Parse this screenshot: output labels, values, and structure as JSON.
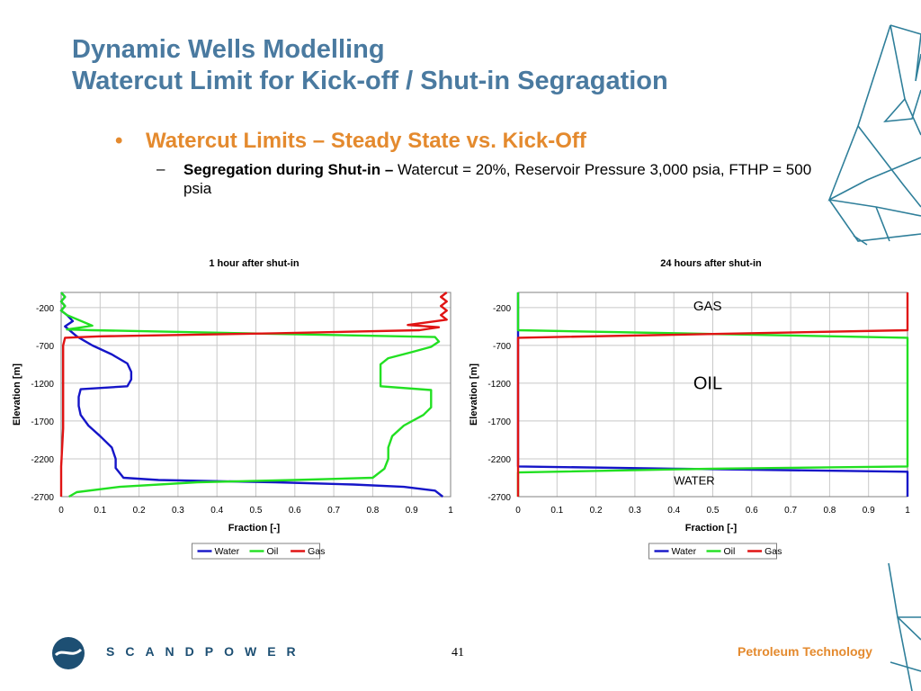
{
  "header": {
    "title_line1": "Dynamic Wells Modelling",
    "title_line2": "Watercut Limit for Kick-off / Shut-in Segragation"
  },
  "bullet": {
    "symbol": "•",
    "text": "Watercut Limits – Steady State vs. Kick-Off"
  },
  "sub_bullet": {
    "dash": "–",
    "bold": "Segregation during Shut-in –",
    "text": " Watercut = 20%, Reservoir Pressure 3,000 psia, FTHP = 500 psia"
  },
  "footer": {
    "page_number": "41",
    "brand": "SCANDPOWER",
    "tagline": "Petroleum Technology"
  },
  "colors": {
    "title": "#4a7aa0",
    "accent": "#e48a2e",
    "water": "#1515c8",
    "oil": "#22e022",
    "gas": "#e01414",
    "brand": "#1d4f73"
  },
  "chart_data": [
    {
      "type": "line",
      "title": "1 hour after shut-in",
      "xlabel": "Fraction [-]",
      "ylabel": "Elevation [m]",
      "xlim": [
        0,
        1
      ],
      "ylim": [
        -2700,
        0
      ],
      "x_ticks": [
        "0",
        "0.1",
        "0.2",
        "0.3",
        "0.4",
        "0.5",
        "0.6",
        "0.7",
        "0.8",
        "0.9",
        "1"
      ],
      "y_ticks": [
        "-200",
        "-700",
        "-1200",
        "-1700",
        "-2200",
        "-2700"
      ],
      "y_tick_values": [
        -200,
        -700,
        -1200,
        -1700,
        -2200,
        -2700
      ],
      "legend": "bottom",
      "grid": true,
      "series": [
        {
          "name": "Water",
          "color": "#1515c8",
          "points": [
            [
              0.0,
              0
            ],
            [
              0.01,
              -60
            ],
            [
              0.0,
              -120
            ],
            [
              0.01,
              -180
            ],
            [
              0.0,
              -240
            ],
            [
              0.015,
              -300
            ],
            [
              0.03,
              -380
            ],
            [
              0.01,
              -450
            ],
            [
              0.04,
              -580
            ],
            [
              0.08,
              -700
            ],
            [
              0.13,
              -820
            ],
            [
              0.17,
              -940
            ],
            [
              0.18,
              -1050
            ],
            [
              0.18,
              -1150
            ],
            [
              0.17,
              -1240
            ],
            [
              0.05,
              -1280
            ],
            [
              0.045,
              -1380
            ],
            [
              0.045,
              -1500
            ],
            [
              0.05,
              -1620
            ],
            [
              0.07,
              -1760
            ],
            [
              0.1,
              -1900
            ],
            [
              0.13,
              -2050
            ],
            [
              0.14,
              -2200
            ],
            [
              0.14,
              -2320
            ],
            [
              0.16,
              -2450
            ],
            [
              0.25,
              -2480
            ],
            [
              0.55,
              -2510
            ],
            [
              0.75,
              -2540
            ],
            [
              0.88,
              -2570
            ],
            [
              0.96,
              -2620
            ],
            [
              0.98,
              -2700
            ]
          ]
        },
        {
          "name": "Oil",
          "color": "#22e022",
          "points": [
            [
              0.0,
              0
            ],
            [
              0.01,
              -60
            ],
            [
              0.0,
              -120
            ],
            [
              0.01,
              -180
            ],
            [
              0.0,
              -240
            ],
            [
              0.015,
              -300
            ],
            [
              0.08,
              -440
            ],
            [
              0.015,
              -490
            ],
            [
              0.08,
              -500
            ],
            [
              0.96,
              -590
            ],
            [
              0.97,
              -650
            ],
            [
              0.95,
              -720
            ],
            [
              0.9,
              -790
            ],
            [
              0.84,
              -870
            ],
            [
              0.82,
              -950
            ],
            [
              0.82,
              -1100
            ],
            [
              0.82,
              -1240
            ],
            [
              0.95,
              -1290
            ],
            [
              0.95,
              -1400
            ],
            [
              0.95,
              -1520
            ],
            [
              0.93,
              -1620
            ],
            [
              0.88,
              -1760
            ],
            [
              0.85,
              -1900
            ],
            [
              0.84,
              -2050
            ],
            [
              0.84,
              -2200
            ],
            [
              0.83,
              -2330
            ],
            [
              0.8,
              -2450
            ],
            [
              0.6,
              -2480
            ],
            [
              0.35,
              -2510
            ],
            [
              0.15,
              -2570
            ],
            [
              0.04,
              -2640
            ],
            [
              0.02,
              -2700
            ]
          ]
        },
        {
          "name": "Gas",
          "color": "#e01414",
          "points": [
            [
              0.99,
              0
            ],
            [
              0.975,
              -60
            ],
            [
              0.99,
              -120
            ],
            [
              0.975,
              -180
            ],
            [
              0.99,
              -240
            ],
            [
              0.975,
              -300
            ],
            [
              0.99,
              -360
            ],
            [
              0.89,
              -430
            ],
            [
              0.97,
              -460
            ],
            [
              0.92,
              -500
            ],
            [
              0.55,
              -540
            ],
            [
              0.1,
              -580
            ],
            [
              0.01,
              -600
            ],
            [
              0.005,
              -700
            ],
            [
              0.005,
              -1200
            ],
            [
              0.005,
              -1800
            ],
            [
              0.0,
              -2300
            ],
            [
              0.0,
              -2700
            ]
          ]
        }
      ]
    },
    {
      "type": "line",
      "title": "24 hours after shut-in",
      "xlabel": "Fraction [-]",
      "ylabel": "Elevation [m]",
      "xlim": [
        0,
        1
      ],
      "ylim": [
        -2700,
        0
      ],
      "x_ticks": [
        "0",
        "0.1",
        "0.2",
        "0.3",
        "0.4",
        "0.5",
        "0.6",
        "0.7",
        "0.8",
        "0.9",
        "1"
      ],
      "y_ticks": [
        "-200",
        "-700",
        "-1200",
        "-1700",
        "-2200",
        "-2700"
      ],
      "y_tick_values": [
        -200,
        -700,
        -1200,
        -1700,
        -2200,
        -2700
      ],
      "legend": "bottom",
      "grid": true,
      "annotations": [
        {
          "text": "GAS",
          "x": 0.45,
          "y": -240
        },
        {
          "text": "OIL",
          "x": 0.45,
          "y": -1280
        },
        {
          "text": "WATER",
          "x": 0.4,
          "y": -2540
        }
      ],
      "series": [
        {
          "name": "Water",
          "color": "#1515c8",
          "points": [
            [
              0.0,
              0
            ],
            [
              0.0,
              -2300
            ],
            [
              0.4,
              -2330
            ],
            [
              1.0,
              -2370
            ],
            [
              1.0,
              -2700
            ]
          ]
        },
        {
          "name": "Oil",
          "color": "#22e022",
          "points": [
            [
              0.0,
              0
            ],
            [
              0.0,
              -500
            ],
            [
              0.5,
              -550
            ],
            [
              1.0,
              -600
            ],
            [
              1.0,
              -2300
            ],
            [
              0.5,
              -2330
            ],
            [
              0.0,
              -2380
            ],
            [
              0.0,
              -2700
            ]
          ]
        },
        {
          "name": "Gas",
          "color": "#e01414",
          "points": [
            [
              1.0,
              0
            ],
            [
              1.0,
              -500
            ],
            [
              0.5,
              -550
            ],
            [
              0.0,
              -600
            ],
            [
              0.0,
              -2700
            ]
          ]
        }
      ]
    }
  ]
}
